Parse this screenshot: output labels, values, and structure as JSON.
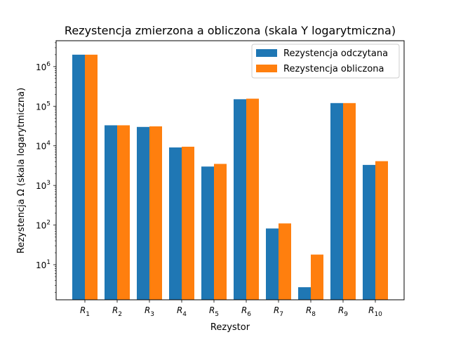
{
  "chart_data": {
    "type": "bar",
    "title": "Rezystencja zmierzona a obliczona (skala Y logarytmiczna)",
    "xlabel": "Rezystor",
    "ylabel": "Rezystencja Ω (skala logarytmiczna)",
    "yscale": "log",
    "ylim": [
      1.3,
      4500000
    ],
    "y_ticks": [
      {
        "value": 10,
        "base": "10",
        "exp": "1"
      },
      {
        "value": 100,
        "base": "10",
        "exp": "2"
      },
      {
        "value": 1000,
        "base": "10",
        "exp": "3"
      },
      {
        "value": 10000,
        "base": "10",
        "exp": "4"
      },
      {
        "value": 100000,
        "base": "10",
        "exp": "5"
      },
      {
        "value": 1000000,
        "base": "10",
        "exp": "6"
      }
    ],
    "categories": [
      {
        "base": "R",
        "sub": "1"
      },
      {
        "base": "R",
        "sub": "2"
      },
      {
        "base": "R",
        "sub": "3"
      },
      {
        "base": "R",
        "sub": "4"
      },
      {
        "base": "R",
        "sub": "5"
      },
      {
        "base": "R",
        "sub": "6"
      },
      {
        "base": "R",
        "sub": "7"
      },
      {
        "base": "R",
        "sub": "8"
      },
      {
        "base": "R",
        "sub": "9"
      },
      {
        "base": "R",
        "sub": "10"
      }
    ],
    "series": [
      {
        "name": "Rezystencja odczytana",
        "color": "#1f77b4",
        "values": [
          2000000,
          33000,
          30000,
          9100,
          3000,
          150000,
          82,
          2.7,
          120000,
          3300
        ]
      },
      {
        "name": "Rezystencja obliczona",
        "color": "#ff7f0e",
        "values": [
          2000000,
          33000,
          31000,
          9500,
          3500,
          155000,
          110,
          18,
          120000,
          4100
        ]
      }
    ],
    "legend_position": "top-right",
    "grid": false
  }
}
